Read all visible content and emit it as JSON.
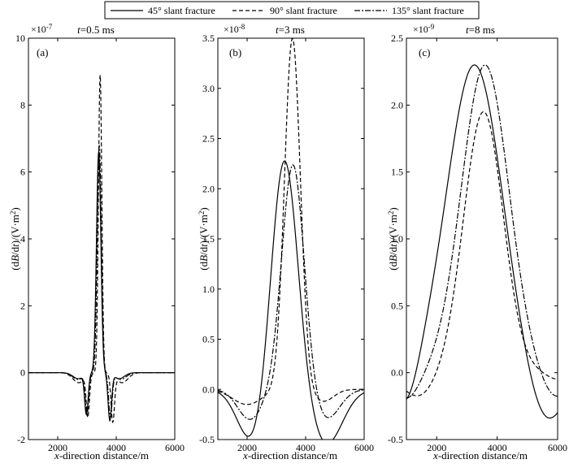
{
  "legend": [
    {
      "label": "45° slant fracture",
      "dash": "solid"
    },
    {
      "label": "90° slant fracture",
      "dash": "dashed"
    },
    {
      "label": "135° slant fracture",
      "dash": "dashdot"
    }
  ],
  "colors": {
    "line": "#000000",
    "background": "#ffffff"
  },
  "chart_data": [
    {
      "type": "line",
      "panel_label": "(a)",
      "time_prefix": "t",
      "time_value": "=0.5 ms",
      "multiplier": "×10",
      "exponent": "-7",
      "xlabel_italic": "x",
      "xlabel_rest": "-direction distance/m",
      "ylabel_parts": [
        "(d",
        "B",
        "/d",
        "t",
        ")/(V·m",
        "2",
        ")"
      ],
      "xlim": [
        1000,
        6000
      ],
      "ylim": [
        -2,
        10
      ],
      "xticks": [
        2000,
        4000,
        6000
      ],
      "yticks": [
        -2,
        0,
        2,
        4,
        6,
        8,
        10
      ],
      "ytick_labels": [
        "-2",
        "0",
        "2",
        "4",
        "6",
        "8",
        "10"
      ],
      "series": [
        {
          "name": "45° slant fracture",
          "dash": "solid",
          "peaks": [
            {
              "c": 2980,
              "a": -1.2,
              "s": 60
            },
            {
              "c": 3400,
              "a": 6.6,
              "s": 75
            },
            {
              "c": 3780,
              "a": -1.4,
              "s": 60
            },
            {
              "c": 2700,
              "a": -0.18,
              "s": 180
            },
            {
              "c": 4100,
              "a": -0.18,
              "s": 180
            }
          ]
        },
        {
          "name": "90° slant fracture",
          "dash": "dashed",
          "peaks": [
            {
              "c": 3030,
              "a": -1.25,
              "s": 55
            },
            {
              "c": 3450,
              "a": 8.9,
              "s": 58
            },
            {
              "c": 3880,
              "a": -1.4,
              "s": 60
            },
            {
              "c": 2720,
              "a": -0.3,
              "s": 200
            },
            {
              "c": 4200,
              "a": -0.3,
              "s": 200
            }
          ]
        },
        {
          "name": "135° slant fracture",
          "dash": "dashdot",
          "peaks": [
            {
              "c": 3000,
              "a": -1.2,
              "s": 58
            },
            {
              "c": 3420,
              "a": 6.8,
              "s": 70
            },
            {
              "c": 3800,
              "a": -1.3,
              "s": 60
            },
            {
              "c": 2700,
              "a": -0.2,
              "s": 190
            },
            {
              "c": 4150,
              "a": -0.2,
              "s": 190
            }
          ]
        }
      ]
    },
    {
      "type": "line",
      "panel_label": "(b)",
      "time_prefix": "t",
      "time_value": "=3 ms",
      "multiplier": "×10",
      "exponent": "-8",
      "xlabel_italic": "x",
      "xlabel_rest": "-direction distance/m",
      "ylabel_parts": [
        "(d",
        "B",
        "/d",
        "t",
        ")/(V·m",
        "2",
        ")"
      ],
      "xlim": [
        1000,
        6000
      ],
      "ylim": [
        -0.5,
        3.5
      ],
      "xticks": [
        2000,
        4000,
        6000
      ],
      "yticks": [
        -0.5,
        0,
        0.5,
        1,
        1.5,
        2,
        2.5,
        3,
        3.5
      ],
      "ytick_labels": [
        "-0.5",
        "0.0",
        "0.5",
        "1.0",
        "1.5",
        "2.0",
        "2.5",
        "3.0",
        "3.5"
      ],
      "series": [
        {
          "name": "45° slant fracture",
          "dash": "solid",
          "peaks": [
            {
              "c": 3270,
              "a": 2.35,
              "s": 450
            },
            {
              "c": 2200,
              "a": -0.55,
              "s": 500
            },
            {
              "c": 4700,
              "a": -0.55,
              "s": 550
            }
          ]
        },
        {
          "name": "90° slant fracture",
          "dash": "dashed",
          "peaks": [
            {
              "c": 3550,
              "a": 3.5,
              "s": 270
            },
            {
              "c": 2000,
              "a": -0.15,
              "s": 500
            },
            {
              "c": 4600,
              "a": -0.12,
              "s": 350
            }
          ]
        },
        {
          "name": "135° slant fracture",
          "dash": "dashdot",
          "peaks": [
            {
              "c": 3570,
              "a": 2.25,
              "s": 380
            },
            {
              "c": 2100,
              "a": -0.3,
              "s": 420
            },
            {
              "c": 4700,
              "a": -0.3,
              "s": 450
            }
          ]
        }
      ]
    },
    {
      "type": "line",
      "panel_label": "(c)",
      "time_prefix": "t",
      "time_value": "=8 ms",
      "multiplier": "×10",
      "exponent": "-9",
      "xlabel_italic": "x",
      "xlabel_rest": "-direction distance/m",
      "ylabel_parts": [
        "(d",
        "B",
        "/d",
        "t",
        ")/(V·m",
        "2",
        ")"
      ],
      "xlim": [
        1000,
        6000
      ],
      "ylim": [
        -0.5,
        2.5
      ],
      "xticks": [
        2000,
        4000,
        6000
      ],
      "yticks": [
        -0.5,
        0,
        0.5,
        1,
        1.5,
        2,
        2.5
      ],
      "ytick_labels": [
        "-0.5",
        "0.0",
        "0.5",
        "1.0",
        "1.5",
        "2.0",
        "2.5"
      ],
      "series": [
        {
          "name": "45° slant fracture",
          "dash": "solid",
          "peaks": [
            {
              "c": 3250,
              "a": 2.3,
              "s": 900
            },
            {
              "c": 1000,
              "a": -0.3,
              "s": 400
            },
            {
              "c": 5600,
              "a": -0.4,
              "s": 600
            }
          ]
        },
        {
          "name": "90° slant fracture",
          "dash": "dashed",
          "peaks": [
            {
              "c": 3550,
              "a": 1.95,
              "s": 650
            },
            {
              "c": 1400,
              "a": -0.18,
              "s": 550
            },
            {
              "c": 6000,
              "a": -0.05,
              "s": 350
            }
          ]
        },
        {
          "name": "135° slant fracture",
          "dash": "dashdot",
          "peaks": [
            {
              "c": 3600,
              "a": 2.3,
              "s": 780
            },
            {
              "c": 1000,
              "a": -0.2,
              "s": 450
            },
            {
              "c": 5900,
              "a": -0.2,
              "s": 500
            }
          ]
        }
      ]
    }
  ]
}
